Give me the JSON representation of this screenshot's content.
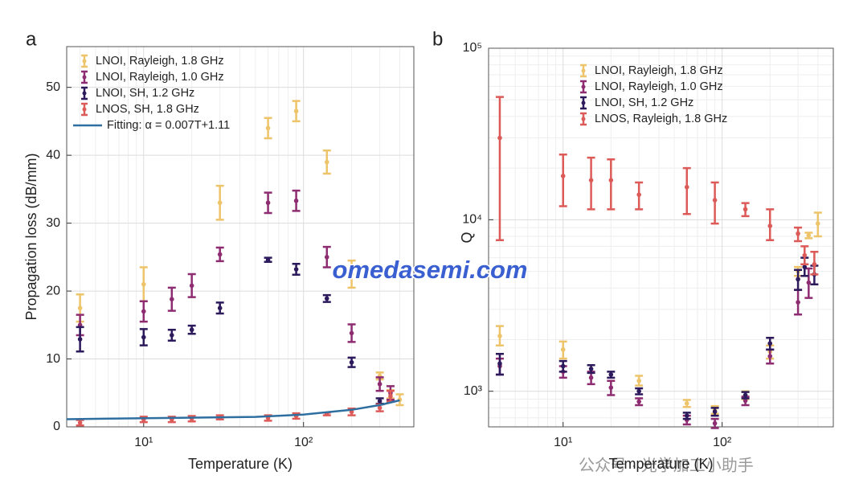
{
  "chart_data": [
    {
      "type": "errorbar",
      "panel": "a",
      "xlabel": "Temperature (K)",
      "ylabel": "Propagation loss (dB/mm)",
      "xlog": true,
      "xlim": [
        3.3,
        490
      ],
      "xticks": [
        {
          "value": 10,
          "label": "10¹"
        },
        {
          "value": 100,
          "label": "10²"
        }
      ],
      "ylim": [
        0,
        56
      ],
      "yticks": [
        0,
        10,
        20,
        30,
        40,
        50
      ],
      "grid": true,
      "legend": "upper left",
      "series": [
        {
          "name": "LNOI, Rayleigh, 1.8 GHz",
          "color": "#EEC46A",
          "style": "errorbar",
          "x": [
            4,
            10,
            30,
            60,
            90,
            140,
            200,
            300,
            350,
            400
          ],
          "values": [
            17.5,
            21,
            33,
            44,
            46.5,
            39,
            22.5,
            7.5,
            4.8,
            4
          ],
          "errors": [
            2,
            2.5,
            2.5,
            1.5,
            1.5,
            1.7,
            2,
            0.5,
            0.6,
            0.8
          ]
        },
        {
          "name": "LNOI, Rayleigh, 1.0 GHz",
          "color": "#8E2C72",
          "style": "errorbar",
          "x": [
            4,
            10,
            15,
            20,
            30,
            60,
            90,
            140,
            200,
            300,
            350
          ],
          "values": [
            15,
            17,
            18.8,
            20.8,
            25.4,
            33,
            33.3,
            25,
            13.8,
            6.3,
            5
          ],
          "errors": [
            1.5,
            1.5,
            1.7,
            1.7,
            1,
            1.5,
            1.5,
            1.5,
            1.3,
            1,
            1
          ]
        },
        {
          "name": "LNOI, SH, 1.2 GHz",
          "color": "#2C1A5C",
          "style": "errorbar",
          "x": [
            4,
            10,
            15,
            20,
            30,
            60,
            90,
            140,
            200,
            300
          ],
          "values": [
            12.9,
            13.2,
            13.5,
            14.3,
            17.5,
            24.6,
            23.2,
            18.9,
            9.5,
            3.8
          ],
          "errors": [
            1.8,
            1.2,
            0.8,
            0.6,
            0.8,
            0.3,
            0.8,
            0.5,
            0.7,
            0.4
          ]
        },
        {
          "name": "LNOS, SH, 1.8 GHz",
          "color": "#DC5A57",
          "style": "errorbar",
          "x": [
            4,
            10,
            15,
            20,
            30,
            60,
            90,
            140,
            200,
            300,
            350
          ],
          "values": [
            0.6,
            1.1,
            1.1,
            1.2,
            1.4,
            1.3,
            1.6,
            1.9,
            2.2,
            2.8,
            4.5
          ],
          "errors": [
            0.4,
            0.4,
            0.4,
            0.4,
            0.3,
            0.4,
            0.4,
            0.2,
            0.5,
            0.5,
            0.8
          ]
        },
        {
          "name": "Fitting: α = 0.007T+1.11",
          "color": "#2F6FA0",
          "style": "line",
          "x": [
            3.3,
            50,
            100,
            200,
            300,
            400
          ],
          "values": [
            1.13,
            1.46,
            1.81,
            2.51,
            3.21,
            3.91
          ]
        }
      ]
    },
    {
      "type": "errorbar",
      "panel": "b",
      "xlabel": "Temperature (K)",
      "ylabel": "Q",
      "xlog": true,
      "xlim": [
        3.4,
        500
      ],
      "xticks": [
        {
          "value": 10,
          "label": "10¹"
        },
        {
          "value": 100,
          "label": "10²"
        }
      ],
      "ylog": true,
      "ylim": [
        620,
        100000
      ],
      "yticks": [
        {
          "value": 1000,
          "label": "10³"
        },
        {
          "value": 10000,
          "label": "10⁴"
        },
        {
          "value": 100000,
          "label": "10⁵"
        }
      ],
      "grid": true,
      "legend": "upper center",
      "series": [
        {
          "name": "LNOI, Rayleigh, 1.8 GHz",
          "color": "#EEC46A",
          "style": "range",
          "x": [
            4,
            10,
            30,
            60,
            90,
            140,
            200,
            300,
            350,
            400
          ],
          "values": [
            2100,
            1750,
            1150,
            850,
            780,
            950,
            1700,
            5000,
            8100,
            9500
          ],
          "low": [
            1850,
            1550,
            1080,
            810,
            740,
            900,
            1550,
            4700,
            7800,
            8000
          ],
          "high": [
            2400,
            1950,
            1230,
            890,
            820,
            1000,
            1850,
            5300,
            8400,
            11000
          ]
        },
        {
          "name": "LNOI, Rayleigh, 1.0 GHz",
          "color": "#8E2C72",
          "style": "range",
          "x": [
            4,
            10,
            15,
            20,
            30,
            60,
            90,
            140,
            200,
            300,
            350
          ],
          "values": [
            1400,
            1300,
            1200,
            1050,
            870,
            680,
            650,
            880,
            1600,
            3300,
            4300
          ],
          "low": [
            1250,
            1200,
            1100,
            950,
            830,
            640,
            610,
            830,
            1450,
            2800,
            3500
          ],
          "high": [
            1550,
            1400,
            1300,
            1150,
            910,
            720,
            690,
            930,
            1750,
            3900,
            5200
          ]
        },
        {
          "name": "LNOI, SH, 1.2 GHz",
          "color": "#2C1A5C",
          "style": "range",
          "x": [
            4,
            10,
            15,
            20,
            30,
            60,
            90,
            140,
            200,
            300,
            330,
            380
          ],
          "values": [
            1450,
            1400,
            1350,
            1250,
            1000,
            720,
            760,
            950,
            1900,
            4500,
            5300,
            4800
          ],
          "low": [
            1250,
            1300,
            1280,
            1200,
            960,
            690,
            720,
            910,
            1750,
            3900,
            4700,
            4200
          ],
          "high": [
            1650,
            1500,
            1420,
            1300,
            1040,
            750,
            800,
            990,
            2050,
            5100,
            6000,
            5400
          ]
        },
        {
          "name": "LNOS, Rayleigh, 1.8 GHz",
          "color": "#DC5A57",
          "style": "range",
          "x": [
            4,
            10,
            15,
            20,
            30,
            60,
            90,
            140,
            200,
            300,
            330,
            380
          ],
          "values": [
            30000,
            18000,
            17000,
            17000,
            14000,
            15500,
            13000,
            11500,
            9200,
            8300,
            6200,
            5500
          ],
          "low": [
            7600,
            12000,
            11500,
            11500,
            11500,
            10800,
            9500,
            10500,
            7600,
            7500,
            5500,
            4800
          ],
          "high": [
            52000,
            24000,
            23000,
            22500,
            16500,
            20000,
            16500,
            12500,
            11500,
            9000,
            7000,
            6500
          ]
        }
      ]
    }
  ],
  "watermark": "omedasemi.com",
  "footer_watermark": "公众号 · 光学加工小助手"
}
